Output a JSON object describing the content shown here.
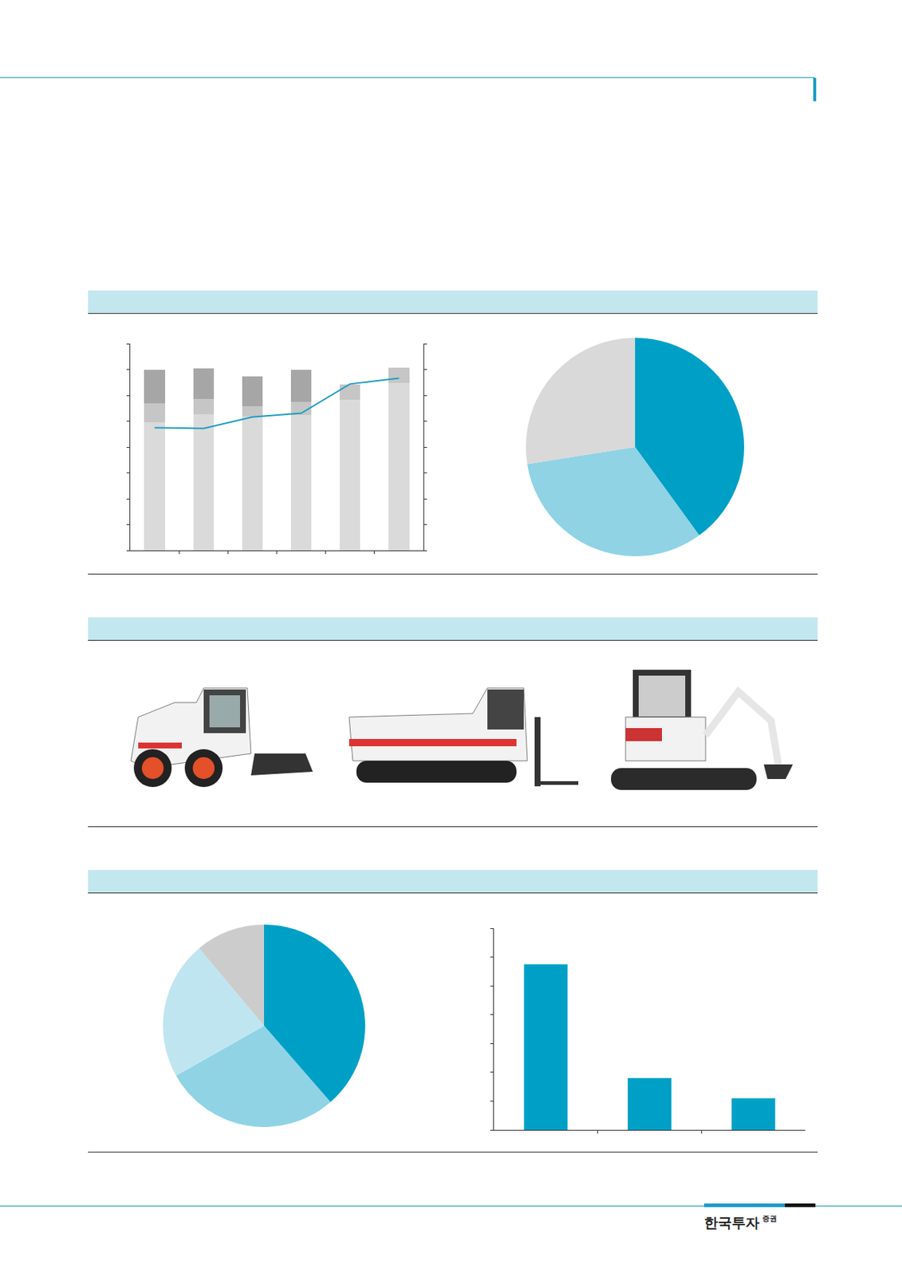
{
  "brand": {
    "name": "한국투자",
    "suffix": "증권"
  },
  "chart_data": [
    {
      "type": "bar",
      "stacked": true,
      "tick_labels": false,
      "legend": "top",
      "categories": [
        null,
        null,
        null,
        null,
        null,
        null
      ],
      "ylim": [
        0,
        8
      ],
      "yticks": [
        0,
        1,
        2,
        3,
        4,
        5,
        6,
        7,
        8
      ],
      "y2lim": [
        0,
        8
      ],
      "y2ticks": [
        0,
        1,
        2,
        3,
        4,
        5,
        6,
        7,
        8
      ],
      "series": [
        {
          "color": "#dadada",
          "values": [
            4.97,
            5.28,
            5.19,
            5.25,
            5.84,
            6.47
          ]
        },
        {
          "color": "#c6c6c6",
          "values": [
            0.72,
            0.59,
            0.38,
            0.5,
            0.59,
            0.59
          ]
        },
        {
          "color": "#a6a6a6",
          "values": [
            1.31,
            1.16,
            1.16,
            1.25,
            0,
            0
          ]
        },
        {
          "type": "line",
          "axis": "y2",
          "color": "#1a9cc4",
          "values": [
            4.75,
            4.72,
            5.16,
            5.31,
            6.44,
            6.66
          ]
        }
      ]
    },
    {
      "type": "pie",
      "values": [
        40,
        32.5,
        27.5
      ],
      "colors": [
        "#00a0c6",
        "#8fd3e5",
        "#d9d9d9"
      ]
    },
    {
      "type": "pie",
      "values": [
        38.6,
        28.2,
        22.1,
        11.1
      ],
      "colors": [
        "#00a0c6",
        "#8fd3e5",
        "#bfe6f0",
        "#cccccc"
      ]
    },
    {
      "type": "bar",
      "tick_labels": false,
      "legend": "top",
      "categories": [
        null,
        null,
        null
      ],
      "ylim": [
        0,
        7
      ],
      "yticks": [
        0,
        1,
        2,
        3,
        4,
        5,
        6,
        7
      ],
      "series": [
        {
          "color": "#00a0c6",
          "values": [
            5.75,
            1.8,
            1.1
          ]
        }
      ]
    }
  ]
}
